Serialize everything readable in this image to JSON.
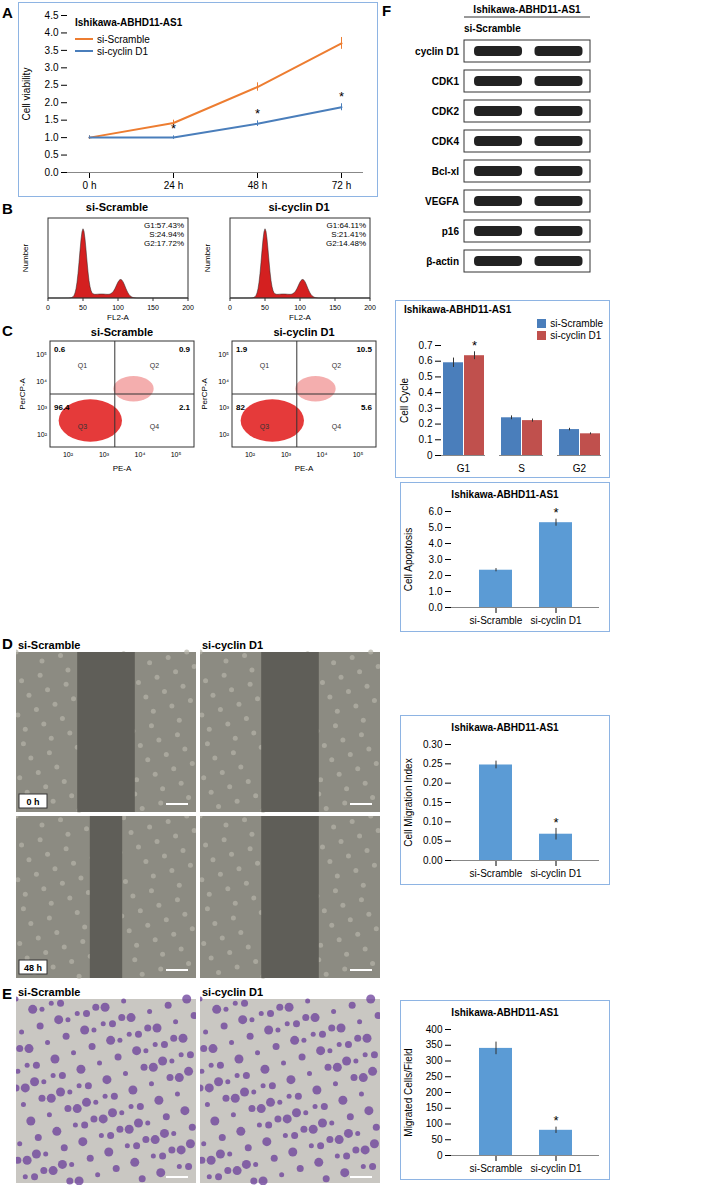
{
  "chart_data": [
    {
      "type": "line",
      "panel_label": "A",
      "title": "Ishikawa-ABHD11-AS1",
      "y_label": "Cell viability",
      "categories": [
        "0 h",
        "24 h",
        "48 h",
        "72 h"
      ],
      "series": [
        {
          "name": "si-Scramble",
          "color": "#ed7d31",
          "values": [
            1.0,
            1.42,
            2.45,
            3.7
          ],
          "errors": [
            0.05,
            0.08,
            0.12,
            0.17
          ]
        },
        {
          "name": "si-cyclin D1",
          "color": "#4a7ebb",
          "values": [
            1.0,
            1.0,
            1.4,
            1.87
          ],
          "errors": [
            0.05,
            0.05,
            0.08,
            0.1
          ]
        }
      ],
      "ylim": [
        0,
        4.5
      ],
      "yticks": [
        {
          "value": 0,
          "label": "0.0"
        },
        {
          "value": 0.5,
          "label": "0.5"
        },
        {
          "value": 1,
          "label": "1.0"
        },
        {
          "value": 1.5,
          "label": "1.5"
        },
        {
          "value": 2,
          "label": "2.0"
        },
        {
          "value": 2.5,
          "label": "2.5"
        },
        {
          "value": 3,
          "label": "3.0"
        },
        {
          "value": 3.5,
          "label": "3.5"
        },
        {
          "value": 4,
          "label": "4.0"
        },
        {
          "value": 4.5,
          "label": "4.5"
        }
      ],
      "legend": "top-left",
      "annotations": [
        {
          "x": "24 h",
          "series": "si-cyclin D1",
          "text": "*"
        },
        {
          "x": "48 h",
          "series": "si-cyclin D1",
          "text": "*"
        },
        {
          "x": "72 h",
          "series": "si-cyclin D1",
          "text": "*"
        }
      ]
    },
    {
      "type": "bar",
      "title": "Ishikawa-ABHD11-AS1",
      "y_label": "Cell Cycle",
      "categories": [
        "G1",
        "S",
        "G2"
      ],
      "series": [
        {
          "name": "si-Scramble",
          "color": "#4a7ebb",
          "values": [
            0.59,
            0.24,
            0.165
          ],
          "errors": [
            0.03,
            0.012,
            0.008
          ]
        },
        {
          "name": "si-cyclin D1",
          "color": "#c0504d",
          "values": [
            0.635,
            0.222,
            0.138
          ],
          "errors": [
            0.025,
            0.01,
            0.006
          ]
        }
      ],
      "ylim": [
        0,
        0.7
      ],
      "yticks": [
        0,
        0.1,
        0.2,
        0.3,
        0.4,
        0.5,
        0.6,
        0.7
      ],
      "legend": "top-right",
      "annotations": [
        {
          "x": "G1",
          "series": "si-cyclin D1",
          "text": "*"
        }
      ]
    },
    {
      "type": "bar",
      "title": "Ishikawa-ABHD11-AS1",
      "y_label": "Cell Apoptosis",
      "categories": [
        "si-Scramble",
        "si-cyclin D1"
      ],
      "values": [
        2.33,
        5.3
      ],
      "errors": [
        0.1,
        0.22
      ],
      "color": "#5b9bd5",
      "ylim": [
        0,
        6
      ],
      "yticks": [
        {
          "value": 0,
          "label": "0.0"
        },
        {
          "value": 1,
          "label": "1.0"
        },
        {
          "value": 2,
          "label": "2.0"
        },
        {
          "value": 3,
          "label": "3.0"
        },
        {
          "value": 4,
          "label": "4.0"
        },
        {
          "value": 5,
          "label": "5.0"
        },
        {
          "value": 6,
          "label": "6.0"
        }
      ],
      "annotations": [
        {
          "x": "si-cyclin D1",
          "text": "*"
        }
      ]
    },
    {
      "type": "bar",
      "title": "Ishikawa-ABHD11-AS1",
      "y_label": "Cell Migration Index",
      "categories": [
        "si-Scramble",
        "si-cyclin D1"
      ],
      "values": [
        0.247,
        0.068
      ],
      "errors": [
        0.01,
        0.015
      ],
      "color": "#5b9bd5",
      "ylim": [
        0,
        0.3
      ],
      "yticks": [
        {
          "value": 0,
          "label": "0.00"
        },
        {
          "value": 0.05,
          "label": "0.05"
        },
        {
          "value": 0.1,
          "label": "0.10"
        },
        {
          "value": 0.15,
          "label": "0.15"
        },
        {
          "value": 0.2,
          "label": "0.20"
        },
        {
          "value": 0.25,
          "label": "0.25"
        },
        {
          "value": 0.3,
          "label": "0.30"
        }
      ],
      "annotations": [
        {
          "x": "si-cyclin D1",
          "text": "*"
        }
      ]
    },
    {
      "type": "bar",
      "title": "Ishikawa-ABHD11-AS1",
      "y_label": "Migrated Cells/Field",
      "categories": [
        "si-Scramble",
        "si-cyclin D1"
      ],
      "values": [
        340,
        80
      ],
      "errors": [
        20,
        10
      ],
      "color": "#5b9bd5",
      "ylim": [
        0,
        400
      ],
      "yticks": [
        0,
        50,
        100,
        150,
        200,
        250,
        300,
        350,
        400
      ],
      "annotations": [
        {
          "x": "si-cyclin D1",
          "text": "*"
        }
      ]
    }
  ],
  "panels": {
    "B": {
      "label": "B",
      "x_label": "FL2-A",
      "y_label": "Number",
      "x_ticks": [
        0,
        50,
        100,
        150,
        200
      ],
      "images": [
        {
          "title": "si-Scramble",
          "lines": [
            "G1:57.43%",
            "S:24.94%",
            "G2:17.72%"
          ]
        },
        {
          "title": "si-cyclin D1",
          "lines": [
            "G1:64.11%",
            "S:21.41%",
            "G2:14.48%"
          ]
        }
      ]
    },
    "C": {
      "label": "C",
      "x_label": "PE-A",
      "y_label": "PerCP-A",
      "ticks": [
        "10²",
        "10³",
        "10⁴",
        "10⁵"
      ],
      "images": [
        {
          "title": "si-Scramble",
          "quadrants": {
            "Q1": 0.6,
            "Q2": 0.9,
            "Q3": 96.4,
            "Q4": 2.1
          }
        },
        {
          "title": "si-cyclin D1",
          "quadrants": {
            "Q1": 1.9,
            "Q2": 10.5,
            "Q3": 82,
            "Q4": 5.6
          }
        }
      ]
    },
    "D": {
      "label": "D",
      "titles": [
        "si-Scramble",
        "si-cyclin D1"
      ],
      "time_labels": [
        "0 h",
        "48 h"
      ]
    },
    "E": {
      "label": "E",
      "titles": [
        "si-Scramble",
        "si-cyclin D1"
      ]
    },
    "F": {
      "label": "F",
      "header": "Ishikawa-ABHD11-AS1",
      "lane_label": "si-Scramble",
      "rows": [
        "cyclin D1",
        "CDK1",
        "CDK2",
        "CDK4",
        "Bcl-xl",
        "VEGFA",
        "p16",
        "β-actin"
      ]
    }
  }
}
